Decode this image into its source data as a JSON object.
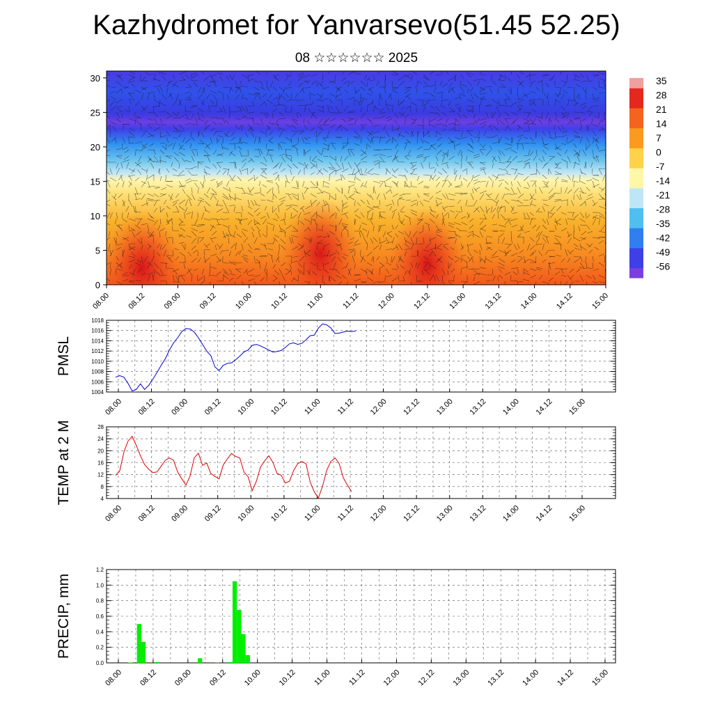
{
  "header": {
    "title": "Kazhydromet for Yanvarsevo(51.45 52.25)",
    "subtitle": "08 ☆☆☆☆☆☆ 2025"
  },
  "chart_data": [
    {
      "type": "heatmap",
      "title": "",
      "xlabel": "",
      "ylabel": "",
      "x_tick_labels": [
        "08.00",
        "08.12",
        "09.00",
        "09.12",
        "10.00",
        "10.12",
        "11.00",
        "11.12",
        "12.00",
        "12.12",
        "13.00",
        "13.12",
        "14.00",
        "14.12",
        "15.00"
      ],
      "y_ticks": [
        0,
        5,
        10,
        15,
        20,
        25,
        30
      ],
      "ylim": [
        0,
        31
      ],
      "colorbar_labels": [
        35,
        28,
        21,
        14,
        7,
        0,
        -7,
        -14,
        -21,
        -28,
        -35,
        -42,
        -49,
        -56
      ],
      "overlay": "wind vectors",
      "color_scale": [
        "#7b3fe0",
        "#3f3fe8",
        "#2f7ff0",
        "#50bff0",
        "#bfe6f5",
        "#fff7a8",
        "#ffd24a",
        "#fb9a1e",
        "#f5641e",
        "#e4281e",
        "#f0a0a0"
      ],
      "heat_centers": [
        {
          "time": "08.12",
          "height": 2.5
        },
        {
          "time": "11.00",
          "height": 4.5
        },
        {
          "time": "12.12",
          "height": 3
        }
      ]
    },
    {
      "type": "line",
      "ylabel": "PMSL",
      "ylim": [
        1004,
        1018
      ],
      "y_ticks": [
        1004,
        1006,
        1008,
        1010,
        1012,
        1014,
        1016,
        1018
      ],
      "x_tick_labels": [
        "08.00",
        "08.12",
        "09.00",
        "09.12",
        "10.00",
        "10.12",
        "11.00",
        "11.12",
        "12.00",
        "12.12",
        "13.00",
        "13.12",
        "14.00",
        "14.12",
        "15.00"
      ],
      "color": "#0000cc",
      "series": [
        {
          "values": [
            1006.9,
            1007.2,
            1006.9,
            1005.7,
            1004.2,
            1004.5,
            1005.6,
            1004.5,
            1005.3,
            1006.5,
            1007.8,
            1009.2,
            1010.5,
            1012.2,
            1013.6,
            1014.6,
            1015.8,
            1016.4,
            1016.3,
            1015.7,
            1014.6,
            1013.3,
            1012.0,
            1011.1,
            1008.9,
            1008.2,
            1009.2,
            1009.6,
            1009.7,
            1010.3,
            1011.0,
            1011.8,
            1012.2,
            1013.1,
            1013.3,
            1013.0,
            1012.6,
            1012.2,
            1011.8,
            1011.9,
            1012.1,
            1012.7,
            1013.4,
            1013.6,
            1013.3,
            1013.5,
            1014.2,
            1015.0,
            1015.1,
            1016.5,
            1017.3,
            1017.1,
            1016.5,
            1015.4,
            1015.5,
            1015.7,
            1015.9,
            1015.8,
            1015.9
          ]
        }
      ]
    },
    {
      "type": "line",
      "ylabel": "TEMP at 2 M",
      "ylim": [
        4,
        28
      ],
      "y_ticks": [
        4,
        8,
        12,
        16,
        20,
        24,
        28
      ],
      "x_tick_labels": [
        "08.00",
        "08.12",
        "09.00",
        "09.12",
        "10.00",
        "10.12",
        "11.00",
        "11.12",
        "12.00",
        "12.12",
        "13.00",
        "13.12",
        "14.00",
        "14.12",
        "15.00"
      ],
      "color": "#dd0000",
      "series": [
        {
          "values": [
            11.8,
            13.2,
            19.5,
            23.2,
            24.8,
            21.8,
            18.3,
            15.4,
            13.8,
            12.7,
            12.9,
            14.8,
            16.8,
            17.6,
            16.8,
            12.8,
            10.6,
            8.5,
            11.6,
            17.6,
            19.2,
            15.1,
            15.9,
            12.4,
            11.4,
            10.6,
            15.2,
            17.3,
            19.1,
            18.1,
            17.6,
            12.9,
            11.3,
            6.6,
            9.8,
            14.5,
            16.6,
            18.3,
            16.1,
            12.4,
            11.8,
            9.2,
            9.8,
            13.4,
            15.7,
            16.4,
            15.6,
            9.5,
            6.2,
            4.2,
            8.2,
            13.5,
            16.4,
            17.6,
            15.7,
            10.9,
            8.5,
            6.3
          ]
        }
      ]
    },
    {
      "type": "bar",
      "ylabel": "PRECIP, mm",
      "ylim": [
        0,
        1.2
      ],
      "y_ticks": [
        "0.0",
        "0.2",
        "0.4",
        "0.6",
        "0.8",
        "1.0",
        "1.2"
      ],
      "x_tick_labels": [
        "08.00",
        "08.12",
        "09.00",
        "09.12",
        "10.00",
        "10.12",
        "11.00",
        "11.12",
        "12.00",
        "12.12",
        "13.00",
        "13.12",
        "14.00",
        "14.12",
        "15.00"
      ],
      "color": "#00ee00",
      "series": [
        {
          "values": [
            0,
            0,
            0,
            0,
            0,
            0.005,
            0,
            0.5,
            0.27,
            0,
            0,
            0.01,
            0,
            0,
            0,
            0,
            0,
            0,
            0,
            0,
            0,
            0.06,
            0,
            0,
            0,
            0.003,
            0,
            0,
            0.01,
            1.05,
            0.68,
            0.37,
            0.1,
            0,
            0,
            0,
            0,
            0,
            0,
            0,
            0,
            0,
            0,
            0,
            0,
            0,
            0,
            0,
            0,
            0,
            0,
            0,
            0,
            0,
            0,
            0,
            0
          ]
        }
      ]
    }
  ]
}
